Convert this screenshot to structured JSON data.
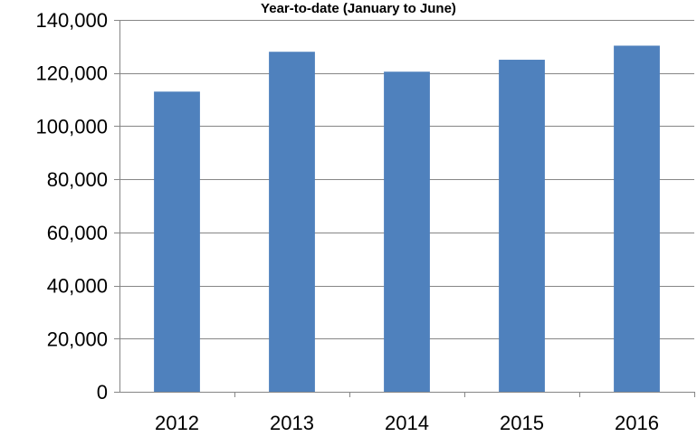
{
  "chart_data": {
    "type": "bar",
    "title": "Year-to-date (January to June)",
    "xlabel": "",
    "ylabel": "",
    "categories": [
      "2012",
      "2013",
      "2014",
      "2015",
      "2016"
    ],
    "values": [
      113000,
      128000,
      120500,
      125000,
      130300
    ],
    "ylim": [
      0,
      140000
    ],
    "y_ticks": [
      0,
      20000,
      40000,
      60000,
      80000,
      100000,
      120000,
      140000
    ],
    "y_tick_labels": [
      "0",
      "20,000",
      "40,000",
      "60,000",
      "80,000",
      "100,000",
      "120,000",
      "140,000"
    ],
    "grid": "horizontal",
    "legend": "none",
    "colors": {
      "bar": "#4f81bd",
      "grid": "#868686",
      "axis": "#868686"
    }
  }
}
